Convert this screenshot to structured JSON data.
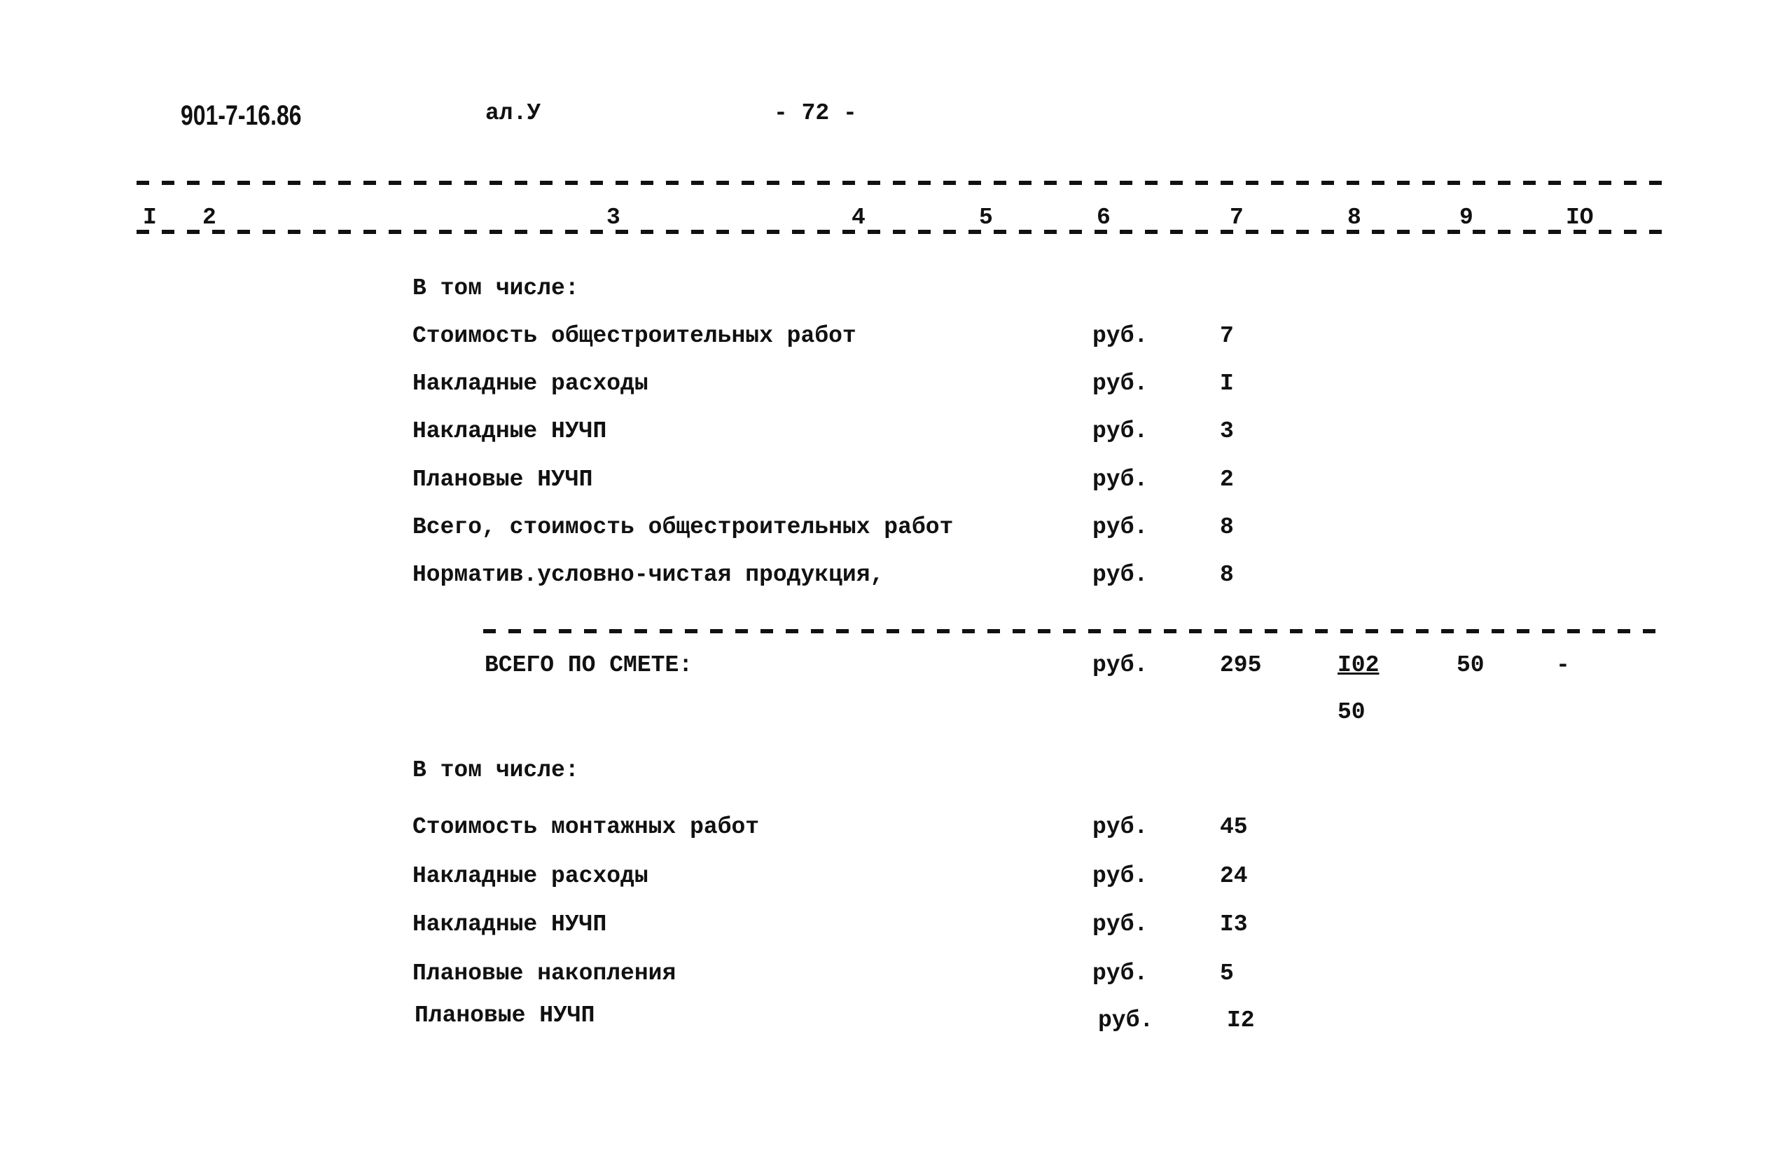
{
  "header": {
    "doc_code": "901-7-16.86",
    "album": "ал.У",
    "page": "- 72 -"
  },
  "columns": [
    "I",
    "2",
    "3",
    "4",
    "5",
    "6",
    "7",
    "8",
    "9",
    "IO"
  ],
  "section1": {
    "heading": "В том числе:",
    "rows": [
      {
        "label": "Стоимость общестроительных работ",
        "unit": "руб.",
        "value": "7"
      },
      {
        "label": "Накладные расходы",
        "unit": "руб.",
        "value": "I"
      },
      {
        "label": "Накладные НУЧП",
        "unit": "руб.",
        "value": "3"
      },
      {
        "label": "Плановые НУЧП",
        "unit": "руб.",
        "value": "2"
      },
      {
        "label": "Всего, стоимость общестроительных работ",
        "unit": "руб.",
        "value": "8"
      },
      {
        "label": "Норматив.условно-чистая продукция,",
        "unit": "руб.",
        "value": "8"
      }
    ]
  },
  "total": {
    "label": "ВСЕГО ПО СМЕТЕ:",
    "unit": "руб.",
    "col7": "295",
    "col8": "I02",
    "col8_below": "50",
    "col9": "50",
    "col10": "-"
  },
  "section2": {
    "heading": "В том числе:",
    "rows": [
      {
        "label": "Стоимость монтажных работ",
        "unit": "руб.",
        "value": "45"
      },
      {
        "label": "Накладные расходы",
        "unit": "руб.",
        "value": "24"
      },
      {
        "label": "Накладные НУЧП",
        "unit": "руб.",
        "value": "I3"
      },
      {
        "label": "Плановые накопления",
        "unit": "руб.",
        "value": "5"
      },
      {
        "label": "Плановые НУЧП",
        "unit": "руб.",
        "value": "I2"
      }
    ]
  }
}
